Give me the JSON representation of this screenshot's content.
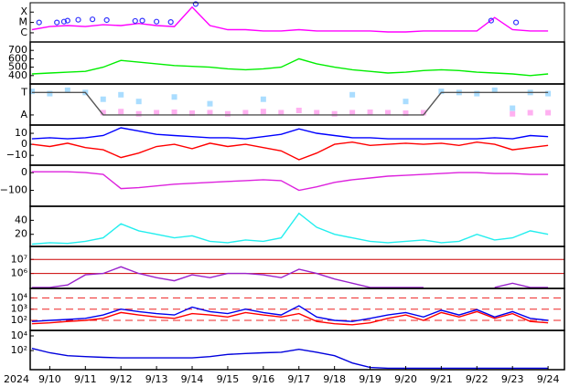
{
  "chart_data": [
    {
      "type": "line",
      "log": true,
      "xlim": [
        9.45,
        24.46
      ],
      "ylim": [
        1.3e-07,
        0.0008
      ],
      "yticks": [
        {
          "value": 0.0001,
          "label": "X"
        },
        {
          "value": 1e-05,
          "label": "M"
        },
        {
          "value": 1e-06,
          "label": "C"
        }
      ],
      "x": [
        9.5,
        10,
        10.5,
        11,
        11.5,
        12,
        12.5,
        13,
        13.5,
        14,
        14.5,
        15,
        15.5,
        16,
        16.5,
        17,
        17.5,
        18,
        18.5,
        19,
        19.5,
        20,
        20.5,
        21,
        21.5,
        22,
        22.5,
        23,
        23.5,
        24
      ],
      "series": [
        {
          "color": "#ff00ff",
          "values": [
            2e-06,
            4e-06,
            5e-06,
            4e-06,
            6e-06,
            5e-06,
            8e-06,
            5e-06,
            4e-06,
            0.0003,
            5e-06,
            2e-06,
            2e-06,
            1.5e-06,
            1.5e-06,
            2e-06,
            1.5e-06,
            1.5e-06,
            1.5e-06,
            1.5e-06,
            1.2e-06,
            1.2e-06,
            1.5e-06,
            1.5e-06,
            1.5e-06,
            1.5e-06,
            3e-05,
            2e-06,
            1.5e-06,
            1.5e-06
          ]
        },
        {
          "color": "#3333ff",
          "marker": "circle",
          "x": [
            9.7,
            10.2,
            10.4,
            10.5,
            10.8,
            11.2,
            11.6,
            12.4,
            12.6,
            13.0,
            13.4,
            14.1,
            22.4,
            23.1
          ],
          "values": [
            1e-05,
            1e-05,
            1.2e-05,
            1.5e-05,
            1.8e-05,
            2e-05,
            1.7e-05,
            1.4e-05,
            1.5e-05,
            1.2e-05,
            1.1e-05,
            0.0006,
            1.5e-05,
            1e-05
          ]
        }
      ]
    },
    {
      "type": "line",
      "xlim": [
        9.45,
        24.46
      ],
      "ylim": [
        300,
        800
      ],
      "yticks": [
        700,
        600,
        500,
        400
      ],
      "x": [
        9.5,
        10,
        10.5,
        11,
        11.5,
        12,
        12.5,
        13,
        13.5,
        14,
        14.5,
        15,
        15.5,
        16,
        16.5,
        17,
        17.5,
        18,
        18.5,
        19,
        19.5,
        20,
        20.5,
        21,
        21.5,
        22,
        22.5,
        23,
        23.5,
        24
      ],
      "series": [
        {
          "color": "#00ee00",
          "values": [
            420,
            430,
            440,
            450,
            500,
            580,
            560,
            540,
            520,
            510,
            500,
            480,
            470,
            480,
            500,
            600,
            540,
            500,
            470,
            450,
            430,
            440,
            460,
            470,
            460,
            440,
            430,
            420,
            400,
            420
          ]
        }
      ]
    },
    {
      "type": "line",
      "xlim": [
        9.45,
        24.46
      ],
      "ylim": [
        -0.45,
        1.38
      ],
      "yticks": [
        {
          "value": 1,
          "label": "T"
        },
        {
          "value": 0,
          "label": "A"
        }
      ],
      "x": [
        9.5,
        10,
        10.5,
        11,
        11.5,
        12,
        12.5,
        13,
        13.5,
        14,
        14.5,
        15,
        15.5,
        16,
        16.5,
        17,
        17.5,
        18,
        18.5,
        19,
        19.5,
        20,
        20.5,
        21,
        21.5,
        22,
        22.5,
        23,
        23.5,
        24
      ],
      "series": [
        {
          "color": "#aaddff",
          "marker": "square",
          "values": [
            1.05,
            0.95,
            1.1,
            1.0,
            0.7,
            0.9,
            0.6,
            null,
            0.8,
            null,
            0.5,
            null,
            null,
            0.7,
            null,
            null,
            null,
            null,
            0.9,
            null,
            null,
            0.6,
            null,
            1.05,
            1.0,
            0.95,
            1.1,
            0.3,
            1.0,
            0.95
          ]
        },
        {
          "color": "#ffb0f0",
          "marker": "square",
          "values": [
            null,
            null,
            null,
            null,
            0.1,
            0.15,
            0.05,
            0.1,
            0.12,
            0.08,
            0.1,
            0.05,
            0.1,
            0.15,
            0.1,
            0.2,
            0.1,
            0.05,
            0.1,
            0.12,
            0.1,
            0.08,
            0.1,
            null,
            null,
            null,
            null,
            0.05,
            0.1,
            0.1
          ]
        },
        {
          "color": "#555555",
          "values": [
            1,
            1,
            1,
            1,
            0,
            0,
            0,
            0,
            0,
            0,
            0,
            0,
            0,
            0,
            0,
            0,
            0,
            0,
            0,
            0,
            0,
            0,
            0,
            1,
            1,
            1,
            1,
            1,
            1,
            1
          ]
        }
      ]
    },
    {
      "type": "line",
      "xlim": [
        9.45,
        24.46
      ],
      "ylim": [
        -19,
        17.5
      ],
      "yticks": [
        10,
        0,
        {
          "value": -10,
          "label": "−10"
        }
      ],
      "x": [
        9.5,
        10,
        10.5,
        11,
        11.5,
        12,
        12.5,
        13,
        13.5,
        14,
        14.5,
        15,
        15.5,
        16,
        16.5,
        17,
        17.5,
        18,
        18.5,
        19,
        19.5,
        20,
        20.5,
        21,
        21.5,
        22,
        22.5,
        23,
        23.5,
        24
      ],
      "series": [
        {
          "color": "#0000ff",
          "values": [
            5,
            6,
            5,
            6,
            8,
            15,
            12,
            9,
            8,
            7,
            6,
            6,
            5,
            7,
            9,
            14,
            10,
            8,
            6,
            6,
            5,
            5,
            5,
            5,
            5,
            5,
            6,
            5,
            8,
            7
          ]
        },
        {
          "color": "#ff0000",
          "values": [
            0,
            -2,
            1,
            -3,
            -5,
            -12,
            -8,
            -2,
            0,
            -4,
            1,
            -2,
            0,
            -3,
            -6,
            -14,
            -8,
            0,
            2,
            -1,
            0,
            1,
            0,
            1,
            -1,
            2,
            0,
            -5,
            -3,
            -1
          ]
        }
      ]
    },
    {
      "type": "line",
      "xlim": [
        9.45,
        24.46
      ],
      "ylim": [
        -190,
        42
      ],
      "yticks": [
        0,
        {
          "value": -100,
          "label": "−100"
        }
      ],
      "x": [
        9.5,
        10,
        10.5,
        11,
        11.5,
        12,
        12.5,
        13,
        13.5,
        14,
        14.5,
        15,
        15.5,
        16,
        16.5,
        17,
        17.5,
        18,
        18.5,
        19,
        19.5,
        20,
        20.5,
        21,
        21.5,
        22,
        22.5,
        23,
        23.5,
        24
      ],
      "series": [
        {
          "color": "#dd22dd",
          "values": [
            5,
            5,
            5,
            0,
            -10,
            -90,
            -85,
            -75,
            -65,
            -60,
            -55,
            -50,
            -45,
            -40,
            -45,
            -100,
            -80,
            -55,
            -40,
            -30,
            -20,
            -15,
            -10,
            -5,
            0,
            0,
            -5,
            -5,
            -10,
            -10
          ]
        }
      ]
    },
    {
      "type": "line",
      "xlim": [
        9.45,
        24.46
      ],
      "ylim": [
        2.7,
        60
      ],
      "yticks": [
        40,
        20
      ],
      "x": [
        9.5,
        10,
        10.5,
        11,
        11.5,
        12,
        12.5,
        13,
        13.5,
        14,
        14.5,
        15,
        15.5,
        16,
        16.5,
        17,
        17.5,
        18,
        18.5,
        19,
        19.5,
        20,
        20.5,
        21,
        21.5,
        22,
        22.5,
        23,
        23.5,
        24
      ],
      "series": [
        {
          "color": "#22eeee",
          "values": [
            6,
            8,
            7,
            10,
            15,
            35,
            25,
            20,
            15,
            18,
            10,
            8,
            12,
            10,
            15,
            50,
            30,
            20,
            15,
            10,
            8,
            10,
            12,
            8,
            10,
            20,
            12,
            15,
            25,
            20
          ]
        }
      ]
    },
    {
      "type": "line",
      "log": true,
      "grid": true,
      "grid_color": "#cc0000",
      "xlim": [
        9.45,
        24.46
      ],
      "ylim": [
        85000,
        85000000
      ],
      "yticks": [
        {
          "value": 10000000,
          "label": "10⁷"
        },
        {
          "value": 1000000,
          "label": "10⁶"
        }
      ],
      "x": [
        9.5,
        10,
        10.5,
        11,
        11.5,
        12,
        12.5,
        13,
        13.5,
        14,
        14.5,
        15,
        15.5,
        16,
        16.5,
        17,
        17.5,
        18,
        18.5,
        19,
        19.5,
        20,
        20.5,
        21,
        21.5,
        22,
        22.5,
        23,
        23.5,
        24
      ],
      "series": [
        {
          "color": "#9922cc",
          "values": [
            100000,
            100000,
            150000,
            800000,
            1000000,
            3000000,
            1000000,
            500000,
            300000,
            800000,
            500000,
            1000000,
            1000000,
            800000,
            500000,
            2000000,
            1000000,
            400000,
            200000,
            100000,
            100000,
            100000,
            100000,
            null,
            null,
            null,
            100000,
            200000,
            100000,
            100000
          ]
        }
      ]
    },
    {
      "type": "line",
      "log": true,
      "grid": true,
      "grid_color": "#ee2222",
      "grid_dash": true,
      "xlim": [
        9.45,
        24.46
      ],
      "ylim": [
        12.6,
        70800
      ],
      "yticks": [
        {
          "value": 10000,
          "label": "10⁴"
        },
        {
          "value": 1000,
          "label": "10³"
        },
        {
          "value": 100,
          "label": "10²"
        }
      ],
      "x": [
        9.5,
        10,
        10.5,
        11,
        11.5,
        12,
        12.5,
        13,
        13.5,
        14,
        14.5,
        15,
        15.5,
        16,
        16.5,
        17,
        17.5,
        18,
        18.5,
        19,
        19.5,
        20,
        20.5,
        21,
        21.5,
        22,
        22.5,
        23,
        23.5,
        24
      ],
      "series": [
        {
          "color": "#0000ee",
          "values": [
            80,
            100,
            120,
            150,
            300,
            1000,
            600,
            400,
            300,
            1500,
            600,
            400,
            1000,
            500,
            300,
            2000,
            200,
            100,
            80,
            150,
            300,
            500,
            200,
            800,
            300,
            900,
            200,
            600,
            150,
            100
          ]
        },
        {
          "color": "#ff0000",
          "values": [
            50,
            60,
            80,
            100,
            150,
            500,
            300,
            200,
            150,
            400,
            300,
            200,
            500,
            300,
            200,
            400,
            80,
            50,
            40,
            60,
            150,
            300,
            100,
            500,
            200,
            600,
            150,
            400,
            80,
            60
          ]
        }
      ]
    },
    {
      "type": "line",
      "log": true,
      "xlim": [
        9.45,
        24.46
      ],
      "ylim": [
        0.25,
        56000
      ],
      "yticks": [
        {
          "value": 10000,
          "label": "10⁴"
        },
        {
          "value": 100,
          "label": "10²"
        }
      ],
      "xlabel": "2024",
      "xticks": [
        {
          "value": 10,
          "label": "9/10"
        },
        {
          "value": 11,
          "label": "9/11"
        },
        {
          "value": 12,
          "label": "9/12"
        },
        {
          "value": 13,
          "label": "9/13"
        },
        {
          "value": 14,
          "label": "9/14"
        },
        {
          "value": 15,
          "label": "9/15"
        },
        {
          "value": 16,
          "label": "9/16"
        },
        {
          "value": 17,
          "label": "9/17"
        },
        {
          "value": 18,
          "label": "9/18"
        },
        {
          "value": 19,
          "label": "9/19"
        },
        {
          "value": 20,
          "label": "9/20"
        },
        {
          "value": 21,
          "label": "9/21"
        },
        {
          "value": 22,
          "label": "9/22"
        },
        {
          "value": 23,
          "label": "9/23"
        },
        {
          "value": 24,
          "label": "9/24"
        }
      ],
      "x": [
        9.5,
        10,
        10.5,
        11,
        11.5,
        12,
        12.5,
        13,
        13.5,
        14,
        14.5,
        15,
        15.5,
        16,
        16.5,
        17,
        17.5,
        18,
        18.5,
        19,
        19.5,
        20,
        20.5,
        21,
        21.5,
        22,
        22.5,
        23,
        23.5,
        24
      ],
      "series": [
        {
          "color": "#0000dd",
          "values": [
            200,
            50,
            20,
            15,
            12,
            10,
            10,
            10,
            10,
            10,
            15,
            30,
            40,
            50,
            60,
            150,
            60,
            20,
            2,
            0.5,
            0.4,
            0.4,
            0.4,
            0.4,
            0.4,
            0.4,
            0.4,
            0.4,
            0.4,
            0.4
          ]
        }
      ]
    }
  ]
}
